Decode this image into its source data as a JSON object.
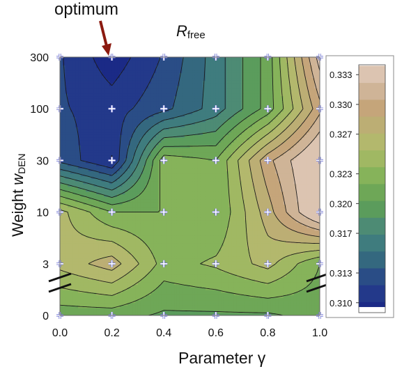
{
  "chart_data": {
    "type": "heatmap",
    "title_main": "R",
    "title_sub": "free",
    "xlabel": "Parameter γ",
    "ylabel_main": "Weight ",
    "ylabel_var": "w",
    "ylabel_sub": "DEN",
    "annotation": "optimum",
    "optimum": {
      "x": 0.2,
      "y": "300"
    },
    "x_ticks": [
      "0.0",
      "0.2",
      "0.4",
      "0.6",
      "0.8",
      "1.0"
    ],
    "x_values": [
      0.0,
      0.2,
      0.4,
      0.6,
      0.8,
      1.0
    ],
    "y_ticks": [
      "0",
      "3",
      "10",
      "30",
      "100",
      "300"
    ],
    "axis_breaks": "between 0 and 3 (left and right)",
    "grid_points": "white crosses at every (x, y) tick combination",
    "z_values": [
      [
        0.321,
        0.321,
        0.32,
        0.32,
        0.32,
        0.321
      ],
      [
        0.326,
        0.328,
        0.323,
        0.324,
        0.326,
        0.322
      ],
      [
        0.326,
        0.322,
        0.322,
        0.322,
        0.328,
        0.335
      ],
      [
        0.313,
        0.31,
        0.323,
        0.322,
        0.33,
        0.335
      ],
      [
        0.312,
        0.311,
        0.313,
        0.316,
        0.321,
        0.33
      ],
      [
        0.312,
        0.309,
        0.312,
        0.316,
        0.321,
        0.333
      ]
    ],
    "colorbar": {
      "range": [
        0.309,
        0.334
      ],
      "ticks": [
        "0.333",
        "0.330",
        "0.327",
        "0.323",
        "0.320",
        "0.317",
        "0.313",
        "0.310"
      ],
      "levels": [
        0.3096,
        0.3101,
        0.3118,
        0.3135,
        0.3152,
        0.3169,
        0.3186,
        0.3203,
        0.322,
        0.3237,
        0.3254,
        0.3271,
        0.3288,
        0.3305,
        0.3322,
        0.3339
      ],
      "colors": [
        "#1b2a86",
        "#23398a",
        "#2a4d86",
        "#34687f",
        "#3f7c7e",
        "#4d8b74",
        "#5b9c5c",
        "#6ea757",
        "#86b35a",
        "#a0b863",
        "#b3b86d",
        "#bcae74",
        "#c5a57a",
        "#cfb497",
        "#dcc4b1"
      ]
    }
  }
}
